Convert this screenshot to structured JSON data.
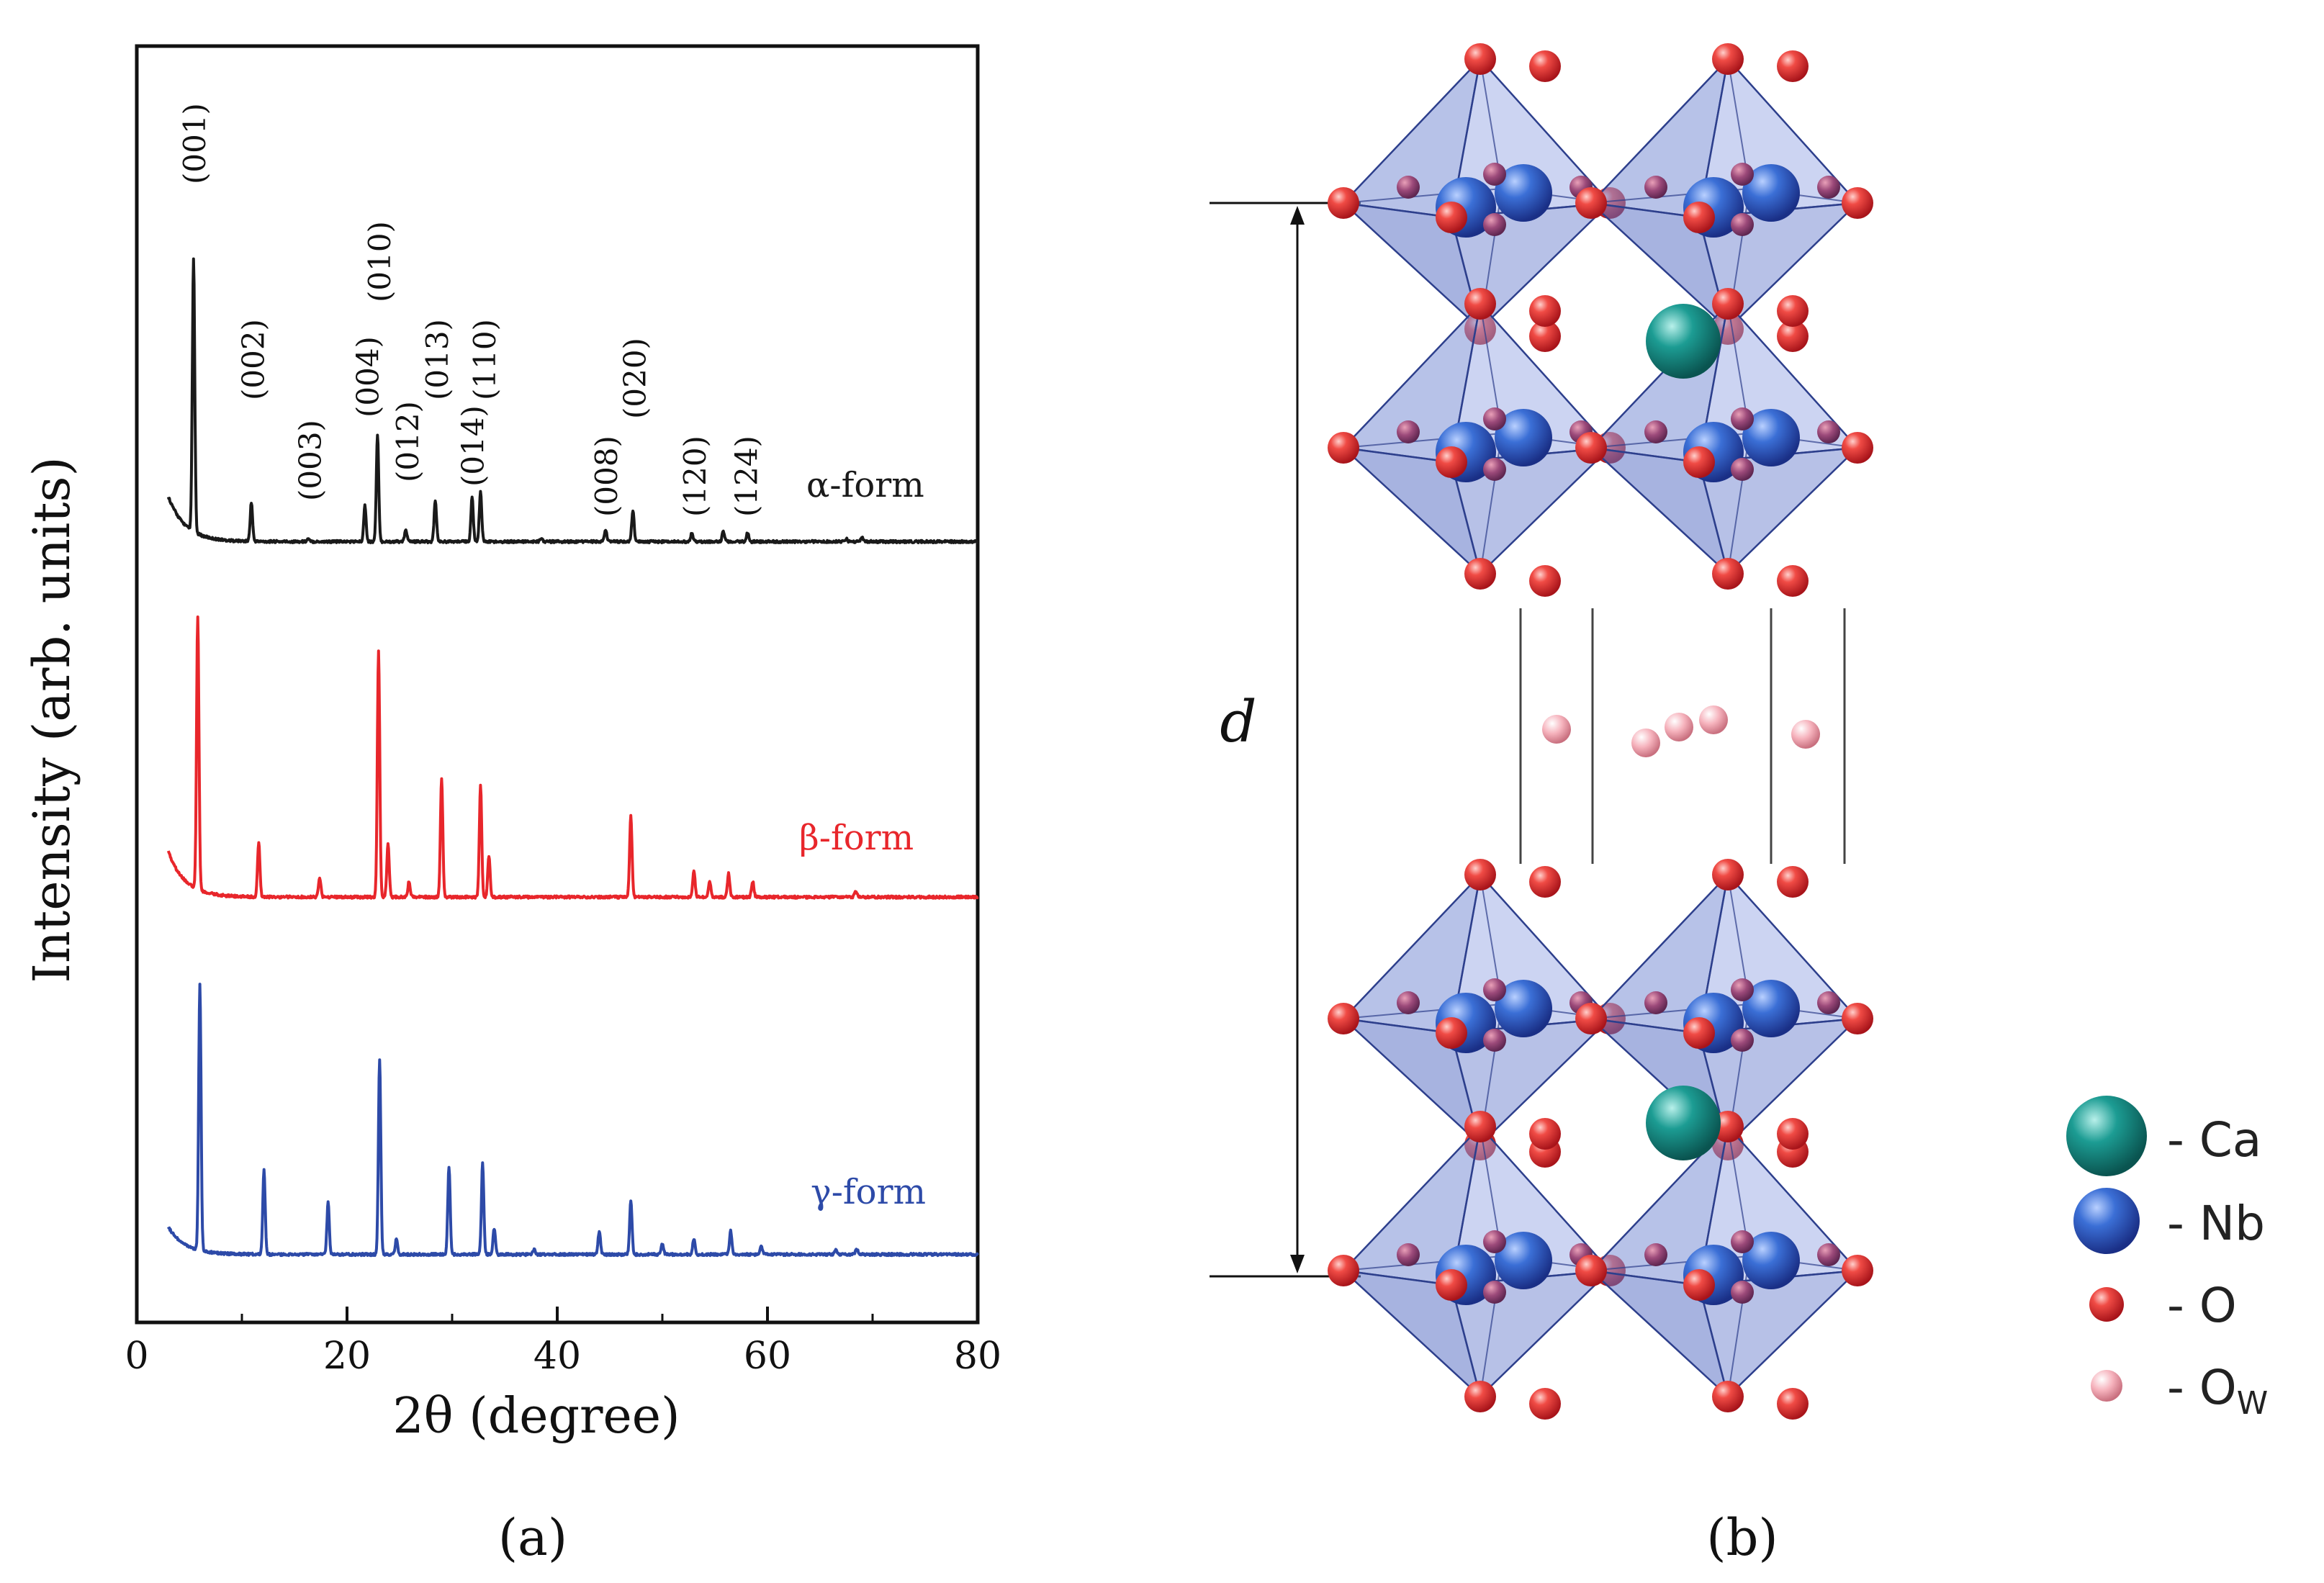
{
  "chart_data": {
    "type": "line",
    "panel_label": "(a)",
    "xlabel": "2θ (degree)",
    "ylabel": "Intensity (arb. units)",
    "xlim": [
      0,
      80
    ],
    "x_ticks": [
      0,
      20,
      40,
      60,
      80
    ],
    "x_tick_labels": [
      "0",
      "20",
      "40",
      "60",
      "80"
    ],
    "grid": false,
    "series": [
      {
        "name": "α-form",
        "color": "#1a1a1a",
        "baseline": 0.1,
        "peaks": [
          [
            5.4,
            2.1
          ],
          [
            10.9,
            0.3
          ],
          [
            16.3,
            0.02
          ],
          [
            21.7,
            0.28
          ],
          [
            22.9,
            0.82
          ],
          [
            25.6,
            0.09
          ],
          [
            28.4,
            0.32
          ],
          [
            31.9,
            0.34
          ],
          [
            32.7,
            0.38
          ],
          [
            38.5,
            0.03
          ],
          [
            44.6,
            0.09
          ],
          [
            47.2,
            0.24
          ],
          [
            52.8,
            0.06
          ],
          [
            55.8,
            0.08
          ],
          [
            58.1,
            0.07
          ],
          [
            67.5,
            0.02
          ],
          [
            69.0,
            0.03
          ]
        ]
      },
      {
        "name": "β-form",
        "color": "#e8262b",
        "baseline": 0.04,
        "peaks": [
          [
            5.8,
            2.1
          ],
          [
            11.6,
            0.42
          ],
          [
            17.4,
            0.15
          ],
          [
            23.0,
            1.9
          ],
          [
            23.9,
            0.42
          ],
          [
            25.9,
            0.12
          ],
          [
            29.0,
            0.92
          ],
          [
            32.7,
            0.86
          ],
          [
            33.5,
            0.32
          ],
          [
            47.0,
            0.63
          ],
          [
            53.0,
            0.2
          ],
          [
            54.5,
            0.12
          ],
          [
            56.3,
            0.18
          ],
          [
            58.6,
            0.12
          ],
          [
            68.4,
            0.05
          ]
        ]
      },
      {
        "name": "γ-form",
        "color": "#2d4aa8",
        "baseline": 0.06,
        "peaks": [
          [
            6.0,
            2.05
          ],
          [
            12.1,
            0.65
          ],
          [
            18.2,
            0.4
          ],
          [
            23.1,
            1.5
          ],
          [
            24.7,
            0.12
          ],
          [
            29.7,
            0.68
          ],
          [
            32.9,
            0.7
          ],
          [
            34.0,
            0.2
          ],
          [
            37.8,
            0.04
          ],
          [
            44.0,
            0.18
          ],
          [
            47.0,
            0.42
          ],
          [
            50.0,
            0.08
          ],
          [
            53.0,
            0.12
          ],
          [
            56.5,
            0.18
          ],
          [
            59.4,
            0.07
          ],
          [
            66.5,
            0.04
          ],
          [
            68.5,
            0.04
          ]
        ]
      }
    ],
    "peak_labels": [
      {
        "text": "(001)",
        "x": 5.4
      },
      {
        "text": "(002)",
        "x": 11.0
      },
      {
        "text": "(003)",
        "x": 16.4
      },
      {
        "text": "(004)",
        "x": 21.9
      },
      {
        "text": "(010)",
        "x": 23.0
      },
      {
        "text": "(012)",
        "x": 25.7
      },
      {
        "text": "(013)",
        "x": 28.5
      },
      {
        "text": "(014)",
        "x": 31.9
      },
      {
        "text": "(110)",
        "x": 33.0
      },
      {
        "text": "(008)",
        "x": 44.6
      },
      {
        "text": "(020)",
        "x": 47.3
      },
      {
        "text": "(120)",
        "x": 53.0
      },
      {
        "text": "(124)",
        "x": 57.9
      }
    ]
  },
  "structure": {
    "panel_label": "(b)",
    "spacing_label": "d",
    "legend": [
      {
        "symbol": "Ca",
        "label": "- Ca",
        "color": "#178a82"
      },
      {
        "symbol": "Nb",
        "label": "- Nb",
        "color": "#2e5fc9"
      },
      {
        "symbol": "O",
        "label": "- O",
        "color": "#e0282d"
      },
      {
        "symbol": "Ow",
        "label": "- O",
        "subscript": "W",
        "color": "#f2a3b0"
      }
    ]
  }
}
